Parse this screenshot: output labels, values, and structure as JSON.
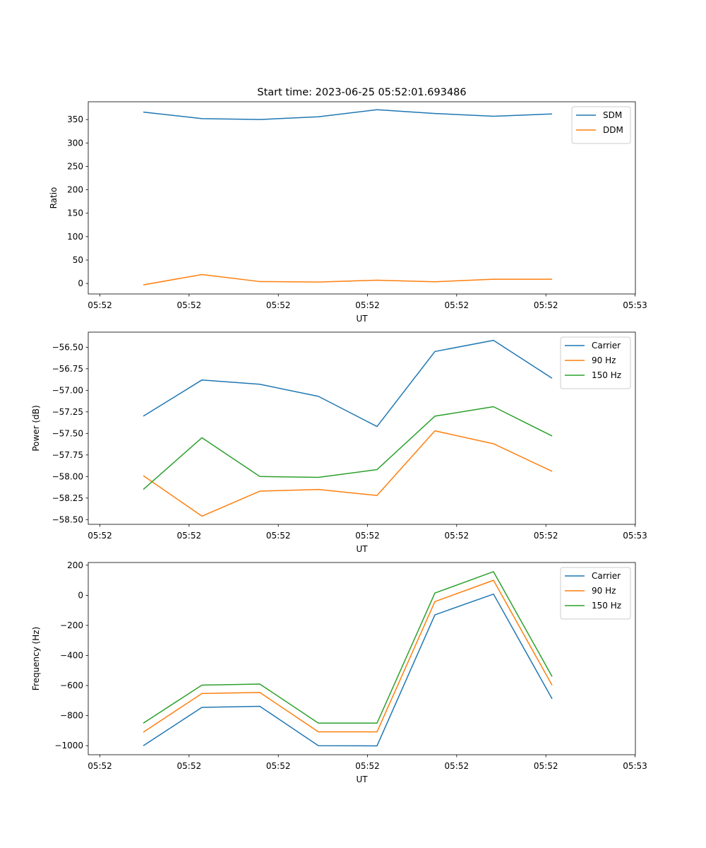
{
  "figure_title": "Start time: 2023-06-25 05:52:01.693486",
  "chart_data": [
    {
      "type": "line",
      "x_tick_labels": [
        "05:52",
        "05:52",
        "05:52",
        "05:52",
        "05:52",
        "05:52",
        "05:52",
        "05:53"
      ],
      "xlabel": "UT",
      "ylabel": "Ratio",
      "ylim": [
        -22.5,
        388
      ],
      "y_ticks": [
        0,
        50,
        100,
        150,
        200,
        250,
        300,
        350
      ],
      "legend": "top-right",
      "series": [
        {
          "name": "SDM",
          "color": "#1f77b4",
          "values": [
            366,
            352,
            350,
            356,
            371,
            363,
            357,
            362
          ]
        },
        {
          "name": "DDM",
          "color": "#ff7f0e",
          "values": [
            -3,
            19,
            4,
            3,
            7,
            3.5,
            9,
            9
          ]
        }
      ]
    },
    {
      "type": "line",
      "x_tick_labels": [
        "05:52",
        "05:52",
        "05:52",
        "05:52",
        "05:52",
        "05:52",
        "05:52",
        "05:53"
      ],
      "xlabel": "UT",
      "ylabel": "Power (dB)",
      "ylim": [
        -58.555,
        -56.325
      ],
      "y_ticks": [
        -58.5,
        -58.25,
        -58.0,
        -57.75,
        -57.5,
        -57.25,
        -57.0,
        -56.75,
        -56.5
      ],
      "y_tick_labels": [
        "−58.50",
        "−58.25",
        "−58.00",
        "−57.75",
        "−57.50",
        "−57.25",
        "−57.00",
        "−56.75",
        "−56.50"
      ],
      "legend": "top-right",
      "series": [
        {
          "name": "Carrier",
          "color": "#1f77b4",
          "values": [
            -57.3,
            -56.88,
            -56.93,
            -57.07,
            -57.42,
            -56.55,
            -56.42,
            -56.86
          ]
        },
        {
          "name": "90 Hz",
          "color": "#ff7f0e",
          "values": [
            -57.99,
            -58.46,
            -58.17,
            -58.15,
            -58.22,
            -57.47,
            -57.62,
            -57.94
          ]
        },
        {
          "name": "150 Hz",
          "color": "#2ca02c",
          "values": [
            -58.15,
            -57.55,
            -58.0,
            -58.01,
            -57.92,
            -57.3,
            -57.19,
            -57.53
          ]
        }
      ]
    },
    {
      "type": "line",
      "x_tick_labels": [
        "05:52",
        "05:52",
        "05:52",
        "05:52",
        "05:52",
        "05:52",
        "05:52",
        "05:53"
      ],
      "xlabel": "UT",
      "ylabel": "Frequency (Hz)",
      "ylim": [
        -1060,
        218
      ],
      "y_ticks": [
        -1000,
        -800,
        -600,
        -400,
        -200,
        0,
        200
      ],
      "y_tick_labels": [
        "−1000",
        "−800",
        "−600",
        "−400",
        "−200",
        "0",
        "200"
      ],
      "legend": "top-right",
      "series": [
        {
          "name": "Carrier",
          "color": "#1f77b4",
          "values": [
            -1000,
            -745,
            -738,
            -1000,
            -1001,
            -130,
            8,
            -688
          ]
        },
        {
          "name": "90 Hz",
          "color": "#ff7f0e",
          "values": [
            -910,
            -653,
            -646,
            -908,
            -908,
            -42,
            100,
            -598
          ]
        },
        {
          "name": "150 Hz",
          "color": "#2ca02c",
          "values": [
            -850,
            -597,
            -590,
            -850,
            -850,
            15,
            157,
            -540
          ]
        }
      ]
    }
  ]
}
